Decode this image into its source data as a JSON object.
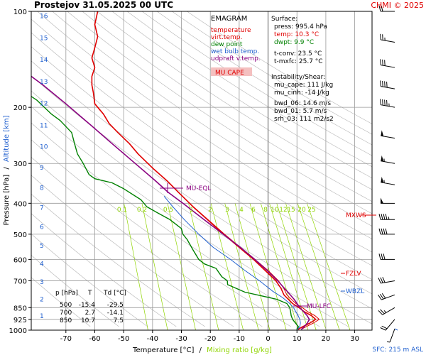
{
  "header": {
    "station_time": "Prostejov   31.05.2025 00 UTC",
    "credit": "CHMI © 2025"
  },
  "colors": {
    "temperature": "#e00000",
    "virt_temp": "#e00000",
    "dew_point": "#008000",
    "wet_bulb": "#1f5fcf",
    "updraft": "#8a0080",
    "mixing": "#8fd400",
    "annot_purple": "#8a0080",
    "annot_red": "#e00000",
    "annot_blue": "#1f5fcf",
    "grid": "#9a9a9a",
    "dry_adiabat": "#b8b8b8"
  },
  "legend": {
    "title": "EMAGRAM",
    "items": [
      {
        "label": "temperature",
        "color": "#e00000"
      },
      {
        "label": "virt.temp.",
        "color": "#e00000"
      },
      {
        "label": "dew point",
        "color": "#008000"
      },
      {
        "label": "wet bulb temp.",
        "color": "#1f5fcf"
      },
      {
        "label": "udpraft v.temp.",
        "color": "#8a0080"
      }
    ],
    "badge": "MU CAPE"
  },
  "surface": {
    "title": "Surface:",
    "lines": [
      {
        "text": "press: 995.4 hPa",
        "color": "#000000"
      },
      {
        "text": "temp: 10.3 °C",
        "color": "#e00000"
      },
      {
        "text": "dwpt: 9.9 °C",
        "color": "#008000"
      },
      {
        "text": "",
        "color": "#000000"
      },
      {
        "text": "t-conv: 23.5 °C",
        "color": "#000000"
      },
      {
        "text": "t-mxfc: 25.7 °C",
        "color": "#000000"
      }
    ]
  },
  "instability": {
    "title": "Instability/Shear:",
    "lines": [
      "mu_cape: 111 J/kg",
      "mu_cinh: -14 J/kg",
      "",
      "bwd_06: 14.6 m/s",
      "bwd_01: 5.7 m/s",
      "srh_03: 111 m2/s2"
    ]
  },
  "levels_table": {
    "headers": [
      "p [hPa]",
      "T",
      "Td [°C]"
    ],
    "rows": [
      [
        "500",
        "-15.4",
        "-29.5"
      ],
      [
        "700",
        "2.7",
        "-14.1"
      ],
      [
        "850",
        "10.7",
        "7.5"
      ]
    ]
  },
  "annotations": {
    "mu_eql": "MU-EQL",
    "mu_lfc": "MU-LFC",
    "mxws": "MXWS",
    "fzlv": "FZLV",
    "wbzl": "WBZL"
  },
  "axes": {
    "xlabel": "Temperature [°C]",
    "xlabel_sep": "/",
    "xlabel2": "Mixing ratio [g/kg]",
    "ylabel": "Pressure [hPa]",
    "ylabel_sep": "/",
    "ylabel2": "Altitude [km]",
    "footer": "SFC: 215 m ASL"
  },
  "chart_data": {
    "type": "line",
    "title": "Prostejov   31.05.2025 00 UTC",
    "x_ticks": [
      -70,
      -60,
      -50,
      -40,
      -30,
      -20,
      -10,
      0,
      10,
      20,
      30
    ],
    "xlim": [
      -82,
      36
    ],
    "y_ticks": [
      100,
      200,
      300,
      400,
      500,
      600,
      700,
      850,
      925,
      1000
    ],
    "y_tick_labels": [
      "100",
      "200",
      "300",
      "400",
      "500",
      "600",
      "700",
      "850",
      "925",
      "1000"
    ],
    "ylim": [
      1000,
      100
    ],
    "y_scale": "log",
    "altitude_km": [
      1,
      2,
      3,
      4,
      5,
      6,
      7,
      8,
      9,
      10,
      11,
      12,
      13,
      14,
      15,
      16
    ],
    "mixing_ratio_labels": [
      "0.1",
      "0.2",
      "0.5",
      "1",
      "2",
      "3",
      "4",
      "6",
      "8",
      "10",
      "12",
      "15",
      "20",
      "25"
    ],
    "grid": true,
    "series": [
      {
        "name": "temperature",
        "color": "#e00000",
        "points": [
          [
            10.3,
            995
          ],
          [
            12,
            975
          ],
          [
            14.5,
            950
          ],
          [
            16.5,
            925
          ],
          [
            15,
            900
          ],
          [
            12.5,
            875
          ],
          [
            10.7,
            850
          ],
          [
            8.5,
            825
          ],
          [
            5.5,
            775
          ],
          [
            4.5,
            740
          ],
          [
            2.7,
            700
          ],
          [
            -1,
            650
          ],
          [
            -5,
            600
          ],
          [
            -10,
            550
          ],
          [
            -15.4,
            500
          ],
          [
            -21,
            450
          ],
          [
            -26,
            410
          ],
          [
            -31,
            370
          ],
          [
            -35,
            340
          ],
          [
            -40,
            310
          ],
          [
            -45,
            280
          ],
          [
            -48,
            260
          ],
          [
            -52,
            240
          ],
          [
            -55,
            225
          ],
          [
            -57,
            210
          ],
          [
            -60,
            195
          ],
          [
            -60.5,
            180
          ],
          [
            -61,
            170
          ],
          [
            -61,
            160
          ],
          [
            -60,
            150
          ],
          [
            -61,
            140
          ],
          [
            -60,
            130
          ],
          [
            -59,
            120
          ],
          [
            -60,
            110
          ],
          [
            -59,
            100
          ]
        ]
      },
      {
        "name": "virt.temp.",
        "color": "#e00000",
        "points": [
          [
            11.5,
            995
          ],
          [
            13.2,
            975
          ],
          [
            15.7,
            950
          ],
          [
            17.7,
            925
          ],
          [
            16.2,
            900
          ],
          [
            13.7,
            875
          ],
          [
            11.9,
            850
          ],
          [
            9.6,
            825
          ],
          [
            6.5,
            775
          ],
          [
            5.5,
            740
          ],
          [
            3.6,
            700
          ],
          [
            0,
            650
          ],
          [
            -4.5,
            600
          ],
          [
            -9.6,
            550
          ],
          [
            -15.1,
            500
          ],
          [
            -20.8,
            450
          ],
          [
            -25.9,
            410
          ],
          [
            -30.9,
            370
          ],
          [
            -35,
            340
          ],
          [
            -40,
            310
          ],
          [
            -45,
            280
          ]
        ]
      },
      {
        "name": "dew point",
        "color": "#008000",
        "points": [
          [
            9.9,
            995
          ],
          [
            10.5,
            975
          ],
          [
            9.5,
            950
          ],
          [
            8.5,
            925
          ],
          [
            8,
            900
          ],
          [
            7.8,
            875
          ],
          [
            7.5,
            850
          ],
          [
            6.5,
            825
          ],
          [
            3,
            800
          ],
          [
            -8,
            760
          ],
          [
            -14,
            720
          ],
          [
            -14.1,
            700
          ],
          [
            -16,
            680
          ],
          [
            -17,
            660
          ],
          [
            -18,
            640
          ],
          [
            -22,
            620
          ],
          [
            -24,
            600
          ],
          [
            -26,
            560
          ],
          [
            -28,
            520
          ],
          [
            -29.5,
            500
          ],
          [
            -30,
            480
          ],
          [
            -34,
            450
          ],
          [
            -38,
            430
          ],
          [
            -42,
            410
          ],
          [
            -44,
            390
          ],
          [
            -50,
            360
          ],
          [
            -54,
            345
          ],
          [
            -60,
            335
          ],
          [
            -62,
            325
          ],
          [
            -64,
            300
          ],
          [
            -66,
            280
          ],
          [
            -67,
            260
          ],
          [
            -68,
            240
          ],
          [
            -72,
            220
          ],
          [
            -75,
            210
          ],
          [
            -80,
            190
          ],
          [
            -88,
            170
          ],
          [
            -95,
            160
          ]
        ]
      },
      {
        "name": "wet bulb temp.",
        "color": "#1f5fcf",
        "points": [
          [
            10.1,
            995
          ],
          [
            11,
            975
          ],
          [
            11.2,
            950
          ],
          [
            11,
            925
          ],
          [
            10.4,
            900
          ],
          [
            9.6,
            875
          ],
          [
            8.8,
            850
          ],
          [
            7.5,
            825
          ],
          [
            5,
            790
          ],
          [
            1.6,
            755
          ],
          [
            -3,
            700
          ],
          [
            -8,
            650
          ],
          [
            -13,
            600
          ],
          [
            -19,
            550
          ],
          [
            -24,
            500
          ],
          [
            -29,
            450
          ],
          [
            -33,
            410
          ],
          [
            -36,
            380
          ]
        ]
      },
      {
        "name": "udpraft v.temp.",
        "color": "#8a0080",
        "points": [
          [
            11.5,
            995
          ],
          [
            12.5,
            975
          ],
          [
            13.6,
            950
          ],
          [
            14.3,
            925
          ],
          [
            13.5,
            900
          ],
          [
            12.3,
            875
          ],
          [
            11,
            850
          ],
          [
            9,
            800
          ],
          [
            6.3,
            750
          ],
          [
            3.3,
            700
          ],
          [
            -0.3,
            650
          ],
          [
            -4.6,
            600
          ],
          [
            -9.6,
            550
          ],
          [
            -15.6,
            500
          ],
          [
            -22.2,
            450
          ],
          [
            -29.5,
            400
          ],
          [
            -34.5,
            370
          ],
          [
            -39,
            340
          ],
          [
            -46,
            300
          ],
          [
            -54,
            260
          ],
          [
            -62,
            225
          ],
          [
            -70,
            195
          ],
          [
            -78,
            170
          ],
          [
            -84,
            155
          ]
        ]
      }
    ],
    "wind_barbs": [
      {
        "p": 990,
        "dir": 200,
        "kt": 5
      },
      {
        "p": 925,
        "dir": 220,
        "kt": 20
      },
      {
        "p": 850,
        "dir": 240,
        "kt": 25
      },
      {
        "p": 775,
        "dir": 250,
        "kt": 30
      },
      {
        "p": 700,
        "dir": 260,
        "kt": 30
      },
      {
        "p": 600,
        "dir": 270,
        "kt": 30
      },
      {
        "p": 500,
        "dir": 270,
        "kt": 40
      },
      {
        "p": 450,
        "dir": 270,
        "kt": 45
      },
      {
        "p": 400,
        "dir": 270,
        "kt": 50
      },
      {
        "p": 350,
        "dir": 280,
        "kt": 55
      },
      {
        "p": 300,
        "dir": 280,
        "kt": 55
      },
      {
        "p": 250,
        "dir": 280,
        "kt": 50
      },
      {
        "p": 200,
        "dir": 280,
        "kt": 45
      },
      {
        "p": 175,
        "dir": 280,
        "kt": 40
      },
      {
        "p": 150,
        "dir": 280,
        "kt": 30
      },
      {
        "p": 125,
        "dir": 280,
        "kt": 25
      },
      {
        "p": 100,
        "dir": 270,
        "kt": 20
      }
    ]
  }
}
